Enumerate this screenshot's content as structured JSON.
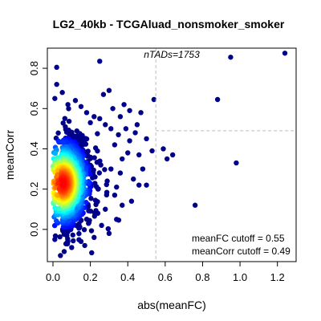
{
  "chart_data": {
    "type": "scatter",
    "title": "LG2_40kb - TCGAluad_nonsmoker_smoker",
    "xlabel": "abs(meanFC)",
    "ylabel": "meanCorr",
    "xlim": [
      -0.03,
      1.3
    ],
    "ylim": [
      -0.16,
      0.9
    ],
    "x_ticks": [
      0.0,
      0.2,
      0.4,
      0.6,
      0.8,
      1.0,
      1.2
    ],
    "x_tick_labels": [
      "0.0",
      "0.2",
      "0.4",
      "0.6",
      "0.8",
      "1.0",
      "1.2"
    ],
    "y_ticks": [
      0.0,
      0.2,
      0.4,
      0.6,
      0.8
    ],
    "y_tick_labels": [
      "0.0",
      "0.2",
      "0.4",
      "0.6",
      "0.8"
    ],
    "grid": false,
    "annotation_top": "nTADs=1753",
    "cutoff_fc_label": "meanFC cutoff = 0.55",
    "cutoff_corr_label": "meanCorr cutoff = 0.49",
    "cutoffs": {
      "meanFC": 0.55,
      "meanCorr": 0.49
    },
    "colors": {
      "points_sparse": "#00008B",
      "density_low": "#0000FF",
      "density_mid": "#00FFFF",
      "density_high": "#FFFF00",
      "density_peak": "#FF0000",
      "cutoff_line": "#BEBEBE"
    },
    "density_core": {
      "x_center": 0.05,
      "y_center": 0.23,
      "x_spread": 0.06,
      "y_spread": 0.11
    },
    "outlier_points": [
      {
        "x": 1.24,
        "y": 0.875
      },
      {
        "x": 0.95,
        "y": 0.855
      },
      {
        "x": 0.25,
        "y": 0.835
      },
      {
        "x": 0.02,
        "y": 0.805
      },
      {
        "x": 0.88,
        "y": 0.645
      },
      {
        "x": 0.98,
        "y": 0.33
      },
      {
        "x": 0.54,
        "y": 0.645
      },
      {
        "x": 0.76,
        "y": 0.12
      },
      {
        "x": 0.64,
        "y": 0.37
      },
      {
        "x": 0.61,
        "y": 0.35
      },
      {
        "x": 0.59,
        "y": 0.4
      },
      {
        "x": 0.47,
        "y": 0.58
      },
      {
        "x": 0.41,
        "y": 0.59
      },
      {
        "x": 0.38,
        "y": 0.62
      },
      {
        "x": 0.36,
        "y": 0.56
      },
      {
        "x": 0.44,
        "y": 0.48
      },
      {
        "x": 0.5,
        "y": 0.45
      },
      {
        "x": 0.53,
        "y": 0.39
      },
      {
        "x": 0.48,
        "y": 0.3
      },
      {
        "x": 0.46,
        "y": 0.22
      },
      {
        "x": 0.5,
        "y": 0.22
      },
      {
        "x": 0.43,
        "y": 0.25
      },
      {
        "x": 0.46,
        "y": 0.37
      },
      {
        "x": 0.4,
        "y": 0.38
      },
      {
        "x": 0.42,
        "y": 0.14
      },
      {
        "x": 0.37,
        "y": 0.12
      },
      {
        "x": 0.33,
        "y": 0.17
      },
      {
        "x": 0.3,
        "y": 0.69
      },
      {
        "x": 0.27,
        "y": 0.67
      },
      {
        "x": 0.32,
        "y": 0.6
      },
      {
        "x": 0.34,
        "y": 0.05
      },
      {
        "x": 0.3,
        "y": -0.02
      },
      {
        "x": 0.26,
        "y": 0.02
      },
      {
        "x": 0.22,
        "y": -0.04
      },
      {
        "x": 0.19,
        "y": 0.03
      },
      {
        "x": 0.15,
        "y": -0.06
      },
      {
        "x": 0.17,
        "y": -0.08
      },
      {
        "x": 0.1,
        "y": -0.09
      },
      {
        "x": 0.08,
        "y": -0.06
      },
      {
        "x": 0.04,
        "y": -0.13
      },
      {
        "x": 0.06,
        "y": -0.11
      },
      {
        "x": 0.01,
        "y": -0.05
      },
      {
        "x": 0.02,
        "y": 0.72
      },
      {
        "x": 0.05,
        "y": 0.68
      },
      {
        "x": 0.01,
        "y": 0.65
      },
      {
        "x": 0.08,
        "y": 0.62
      },
      {
        "x": 0.12,
        "y": 0.64
      },
      {
        "x": 0.15,
        "y": 0.61
      },
      {
        "x": 0.18,
        "y": 0.58
      },
      {
        "x": 0.22,
        "y": 0.56
      },
      {
        "x": 0.2,
        "y": 0.53
      },
      {
        "x": 0.25,
        "y": 0.55
      },
      {
        "x": 0.28,
        "y": 0.52
      },
      {
        "x": 0.31,
        "y": 0.5
      },
      {
        "x": 0.35,
        "y": 0.47
      },
      {
        "x": 0.33,
        "y": 0.42
      },
      {
        "x": 0.37,
        "y": 0.35
      },
      {
        "x": 0.31,
        "y": 0.3
      },
      {
        "x": 0.36,
        "y": 0.28
      },
      {
        "x": 0.29,
        "y": 0.24
      },
      {
        "x": 0.34,
        "y": 0.21
      },
      {
        "x": 0.28,
        "y": 0.1
      },
      {
        "x": 0.24,
        "y": 0.08
      },
      {
        "x": 0.41,
        "y": 0.44
      },
      {
        "x": 0.45,
        "y": 0.52
      },
      {
        "x": 0.39,
        "y": 0.5
      }
    ]
  }
}
